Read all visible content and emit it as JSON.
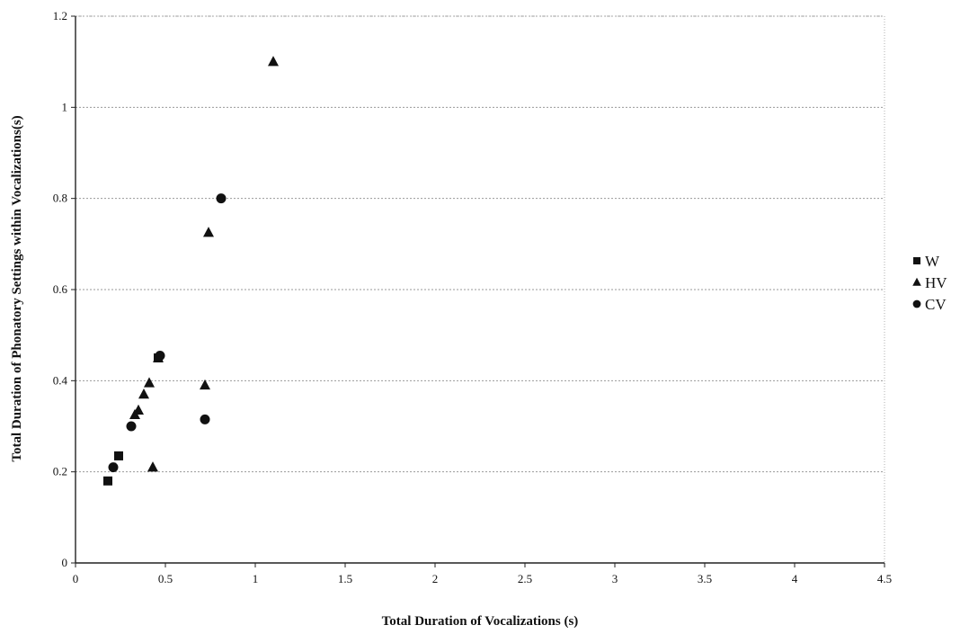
{
  "chart_data": {
    "type": "scatter",
    "title": "",
    "xlabel": "Total Duration of Vocalizations (s)",
    "ylabel": "Total Duration of Phonatory Settings within Vocalizations(s)",
    "xlim": [
      0,
      4.5
    ],
    "ylim": [
      0,
      1.2
    ],
    "xticks": [
      "0",
      "0.5",
      "1",
      "1.5",
      "2",
      "2.5",
      "3",
      "3.5",
      "4",
      "4.5"
    ],
    "yticks": [
      "0",
      "0.2",
      "0.4",
      "0.6",
      "0.8",
      "1",
      "1.2"
    ],
    "grid": "horizontal",
    "legend_position": "right",
    "series": [
      {
        "name": "W",
        "marker": "square",
        "color": "#111111",
        "points": [
          [
            0.18,
            0.18
          ],
          [
            0.24,
            0.235
          ],
          [
            0.46,
            0.45
          ]
        ]
      },
      {
        "name": "HV",
        "marker": "triangle",
        "color": "#111111",
        "points": [
          [
            1.1,
            1.1
          ],
          [
            0.74,
            0.725
          ],
          [
            0.46,
            0.45
          ],
          [
            0.41,
            0.395
          ],
          [
            0.38,
            0.37
          ],
          [
            0.35,
            0.335
          ],
          [
            0.33,
            0.325
          ],
          [
            0.72,
            0.39
          ],
          [
            0.43,
            0.21
          ]
        ]
      },
      {
        "name": "CV",
        "marker": "circle",
        "color": "#111111",
        "points": [
          [
            0.81,
            0.8
          ],
          [
            0.47,
            0.455
          ],
          [
            0.31,
            0.3
          ],
          [
            0.21,
            0.21
          ],
          [
            0.72,
            0.315
          ]
        ]
      }
    ]
  }
}
